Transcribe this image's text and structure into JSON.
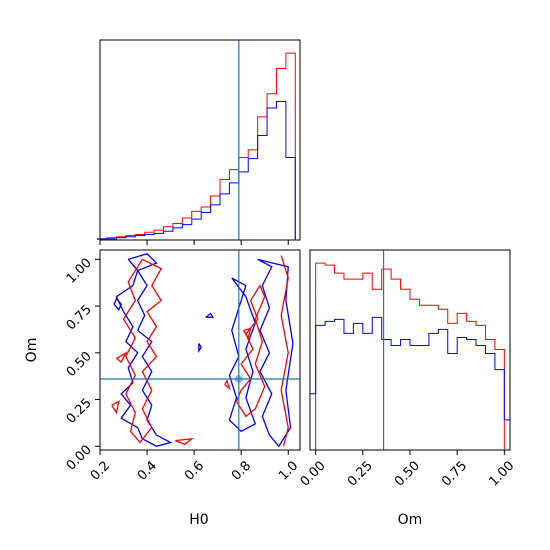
{
  "chart_data": {
    "type": "corner",
    "parameters": [
      "H0",
      "Om"
    ],
    "truth": {
      "H0": 0.79,
      "Om": 0.36
    },
    "colors": {
      "series_a": "#ff0000",
      "series_b": "#0000ff",
      "truth": "#1f77b4"
    },
    "panels": [
      {
        "id": "hist-H0",
        "type": "step-histogram",
        "xlim": [
          0.2,
          1.05
        ],
        "xticks_values": [
          0.2,
          0.4,
          0.6,
          0.8,
          1.0
        ],
        "xtick_labels_visible": false,
        "yticks_visible": false,
        "bins": [
          0.19,
          0.21,
          0.23,
          0.25,
          0.27,
          0.29,
          0.31,
          0.33,
          0.35,
          0.37,
          0.39,
          0.41,
          0.43,
          0.45,
          0.47,
          0.49,
          0.51,
          0.53,
          0.55,
          0.57,
          0.59,
          0.61,
          0.63,
          0.65,
          0.67,
          0.69,
          0.71,
          0.73,
          0.75,
          0.77,
          0.79,
          0.81,
          0.83,
          0.85,
          0.87,
          0.89,
          0.91,
          0.93,
          0.95,
          0.97,
          0.99,
          1.01,
          1.03
        ],
        "series": [
          {
            "color_key": "series_a",
            "values": [
              1,
              1,
              2,
              2,
              3,
              3,
              4,
              4,
              5,
              5,
              7,
              7,
              9,
              9,
              12,
              12,
              15,
              15,
              20,
              20,
              26,
              26,
              30,
              30,
              40,
              40,
              55,
              55,
              64,
              64,
              75,
              75,
              82,
              82,
              112,
              112,
              133,
              133,
              156,
              156,
              170,
              170
            ]
          },
          {
            "color_key": "series_b",
            "values": [
              1,
              1,
              1,
              1,
              2,
              2,
              3,
              3,
              4,
              4,
              5,
              5,
              6,
              6,
              8,
              8,
              11,
              11,
              14,
              14,
              19,
              19,
              25,
              25,
              32,
              32,
              42,
              42,
              52,
              52,
              62,
              62,
              74,
              74,
              95,
              95,
              120,
              120,
              126,
              126,
              75,
              75
            ]
          }
        ]
      },
      {
        "id": "contour-H0-Om",
        "type": "contour-2d",
        "xlim": [
          0.2,
          1.05
        ],
        "ylim": [
          -0.02,
          1.05
        ],
        "xticks": [
          "0.2",
          "0.4",
          "0.6",
          "0.8",
          "1.0"
        ],
        "xticks_values": [
          0.2,
          0.4,
          0.6,
          0.8,
          1.0
        ],
        "yticks": [
          "0.00",
          "0.25",
          "0.50",
          "0.75",
          "1.00"
        ],
        "yticks_values": [
          0.0,
          0.25,
          0.5,
          0.75,
          1.0
        ],
        "xlabel": "H0",
        "ylabel": "Om",
        "series": [
          {
            "color_key": "series_b",
            "contours": [
              [
                [
                  0.32,
                  1.0
                ],
                [
                  0.4,
                  1.03
                ],
                [
                  0.44,
                  0.98
                ],
                [
                  0.36,
                  0.94
                ],
                [
                  0.34,
                  0.86
                ],
                [
                  0.27,
                  0.8
                ],
                [
                  0.3,
                  0.72
                ],
                [
                  0.34,
                  0.64
                ],
                [
                  0.31,
                  0.56
                ],
                [
                  0.36,
                  0.5
                ],
                [
                  0.32,
                  0.42
                ],
                [
                  0.34,
                  0.34
                ],
                [
                  0.29,
                  0.28
                ],
                [
                  0.33,
                  0.22
                ],
                [
                  0.29,
                  0.15
                ],
                [
                  0.36,
                  0.1
                ],
                [
                  0.38,
                  0.04
                ],
                [
                  0.44,
                  0.0
                ],
                [
                  0.5,
                  0.02
                ],
                [
                  0.44,
                  0.06
                ],
                [
                  0.4,
                  0.14
                ],
                [
                  0.42,
                  0.22
                ],
                [
                  0.38,
                  0.3
                ],
                [
                  0.42,
                  0.4
                ],
                [
                  0.38,
                  0.48
                ],
                [
                  0.42,
                  0.56
                ],
                [
                  0.36,
                  0.62
                ],
                [
                  0.39,
                  0.7
                ],
                [
                  0.36,
                  0.78
                ],
                [
                  0.4,
                  0.86
                ],
                [
                  0.36,
                  0.94
                ],
                [
                  0.32,
                  1.0
                ]
              ],
              [
                [
                  0.87,
                  1.0
                ],
                [
                  0.93,
                  0.96
                ],
                [
                  0.89,
                  0.86
                ],
                [
                  0.92,
                  0.74
                ],
                [
                  0.88,
                  0.62
                ],
                [
                  0.92,
                  0.5
                ],
                [
                  0.88,
                  0.4
                ],
                [
                  0.93,
                  0.28
                ],
                [
                  0.89,
                  0.16
                ],
                [
                  0.92,
                  0.06
                ],
                [
                  0.96,
                  0.0
                ],
                [
                  1.01,
                  0.1
                ],
                [
                  0.99,
                  0.3
                ],
                [
                  1.02,
                  0.55
                ],
                [
                  0.99,
                  0.78
                ],
                [
                  1.0,
                  0.96
                ],
                [
                  0.87,
                  1.0
                ]
              ],
              [
                [
                  0.76,
                  0.9
                ],
                [
                  0.82,
                  0.86
                ],
                [
                  0.79,
                  0.74
                ],
                [
                  0.76,
                  0.62
                ],
                [
                  0.79,
                  0.48
                ],
                [
                  0.75,
                  0.38
                ],
                [
                  0.78,
                  0.26
                ],
                [
                  0.75,
                  0.14
                ],
                [
                  0.8,
                  0.08
                ],
                [
                  0.86,
                  0.12
                ],
                [
                  0.82,
                  0.26
                ],
                [
                  0.85,
                  0.4
                ],
                [
                  0.82,
                  0.52
                ],
                [
                  0.86,
                  0.66
                ],
                [
                  0.82,
                  0.8
                ],
                [
                  0.76,
                  0.9
                ]
              ],
              [
                [
                  0.26,
                  0.76
                ],
                [
                  0.28,
                  0.73
                ],
                [
                  0.29,
                  0.76
                ],
                [
                  0.27,
                  0.79
                ],
                [
                  0.26,
                  0.76
                ]
              ],
              [
                [
                  0.65,
                  0.69
                ],
                [
                  0.68,
                  0.69
                ],
                [
                  0.67,
                  0.71
                ],
                [
                  0.65,
                  0.69
                ]
              ],
              [
                [
                  0.62,
                  0.55
                ],
                [
                  0.63,
                  0.53
                ],
                [
                  0.62,
                  0.51
                ],
                [
                  0.62,
                  0.55
                ]
              ]
            ]
          },
          {
            "color_key": "series_a",
            "contours": [
              [
                [
                  0.38,
                  1.0
                ],
                [
                  0.46,
                  0.95
                ],
                [
                  0.42,
                  0.86
                ],
                [
                  0.46,
                  0.78
                ],
                [
                  0.4,
                  0.72
                ],
                [
                  0.44,
                  0.64
                ],
                [
                  0.4,
                  0.56
                ],
                [
                  0.44,
                  0.48
                ],
                [
                  0.38,
                  0.4
                ],
                [
                  0.42,
                  0.3
                ],
                [
                  0.38,
                  0.2
                ],
                [
                  0.42,
                  0.1
                ],
                [
                  0.37,
                  0.02
                ],
                [
                  0.33,
                  0.08
                ],
                [
                  0.35,
                  0.18
                ],
                [
                  0.31,
                  0.28
                ],
                [
                  0.35,
                  0.38
                ],
                [
                  0.31,
                  0.48
                ],
                [
                  0.35,
                  0.58
                ],
                [
                  0.3,
                  0.68
                ],
                [
                  0.35,
                  0.78
                ],
                [
                  0.32,
                  0.88
                ],
                [
                  0.36,
                  0.96
                ],
                [
                  0.38,
                  1.0
                ]
              ],
              [
                [
                  0.78,
                  0.24
                ],
                [
                  0.8,
                  0.3
                ],
                [
                  0.84,
                  0.36
                ],
                [
                  0.8,
                  0.44
                ],
                [
                  0.85,
                  0.52
                ],
                [
                  0.82,
                  0.6
                ],
                [
                  0.87,
                  0.68
                ],
                [
                  0.84,
                  0.78
                ],
                [
                  0.88,
                  0.86
                ],
                [
                  0.9,
                  0.8
                ],
                [
                  0.86,
                  0.68
                ],
                [
                  0.89,
                  0.56
                ],
                [
                  0.86,
                  0.44
                ],
                [
                  0.9,
                  0.32
                ],
                [
                  0.86,
                  0.2
                ],
                [
                  0.82,
                  0.16
                ],
                [
                  0.78,
                  0.24
                ]
              ],
              [
                [
                  0.97,
                  1.02
                ],
                [
                  1.0,
                  0.9
                ],
                [
                  0.97,
                  0.7
                ],
                [
                  1.0,
                  0.5
                ],
                [
                  0.97,
                  0.3
                ],
                [
                  1.0,
                  0.1
                ],
                [
                  0.98,
                  0.0
                ]
              ],
              [
                [
                  0.27,
                  0.47
                ],
                [
                  0.29,
                  0.45
                ],
                [
                  0.31,
                  0.5
                ],
                [
                  0.27,
                  0.47
                ]
              ],
              [
                [
                  0.25,
                  0.22
                ],
                [
                  0.27,
                  0.18
                ],
                [
                  0.28,
                  0.24
                ],
                [
                  0.25,
                  0.22
                ]
              ],
              [
                [
                  0.73,
                  0.33
                ],
                [
                  0.75,
                  0.31
                ],
                [
                  0.74,
                  0.35
                ],
                [
                  0.73,
                  0.33
                ]
              ],
              [
                [
                  0.52,
                  0.03
                ],
                [
                  0.56,
                  0.01
                ],
                [
                  0.59,
                  0.04
                ],
                [
                  0.52,
                  0.03
                ]
              ],
              [
                [
                  0.81,
                  0.62
                ],
                [
                  0.83,
                  0.58
                ],
                [
                  0.84,
                  0.63
                ],
                [
                  0.81,
                  0.62
                ]
              ]
            ]
          }
        ]
      },
      {
        "id": "hist-Om",
        "type": "step-histogram",
        "xlim": [
          -0.03,
          1.03
        ],
        "xticks": [
          "0.00",
          "0.25",
          "0.50",
          "0.75",
          "1.00"
        ],
        "xticks_values": [
          0.0,
          0.25,
          0.5,
          0.75,
          1.0
        ],
        "xlabel": "Om",
        "yticks_visible": false,
        "bins": [
          -0.03,
          0.0,
          0.05,
          0.1,
          0.15,
          0.2,
          0.25,
          0.3,
          0.35,
          0.4,
          0.45,
          0.5,
          0.55,
          0.6,
          0.65,
          0.7,
          0.75,
          0.8,
          0.85,
          0.9,
          0.95,
          1.0,
          1.03
        ],
        "series": [
          {
            "color_key": "series_a",
            "values": [
              0,
              93,
              92,
              88,
              85,
              85,
              88,
              80,
              90,
              85,
              80,
              75,
              72,
              72,
              70,
              63,
              68,
              64,
              62,
              55,
              50,
              0
            ]
          },
          {
            "color_key": "series_b",
            "values": [
              28,
              62,
              64,
              65,
              58,
              63,
              58,
              66,
              55,
              52,
              55,
              52,
              52,
              58,
              60,
              48,
              56,
              55,
              52,
              48,
              40,
              15
            ]
          }
        ]
      }
    ]
  }
}
